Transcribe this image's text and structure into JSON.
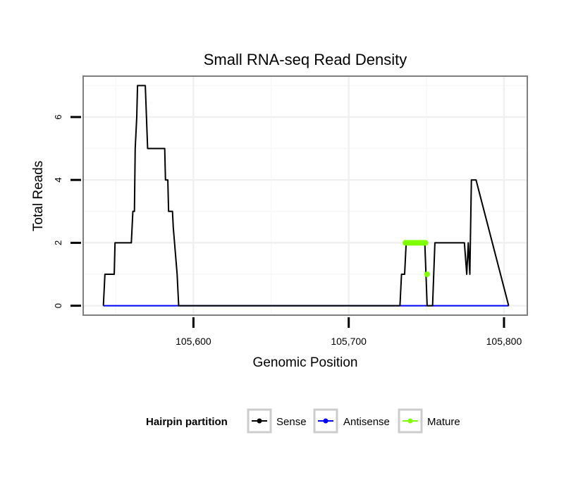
{
  "chart_data": {
    "type": "line",
    "title": "Small RNA-seq Read Density",
    "xlabel": "Genomic Position",
    "ylabel": "Total Reads",
    "xlim": [
      105529,
      105815
    ],
    "ylim": [
      -0.3,
      7.3
    ],
    "x_ticks": [
      105600,
      105700,
      105800
    ],
    "x_tick_labels": [
      "105,600",
      "105,700",
      "105,800"
    ],
    "x_minor_grid": [
      105550,
      105650,
      105750
    ],
    "y_ticks": [
      0,
      2,
      4,
      6
    ],
    "y_tick_labels": [
      "0",
      "2",
      "4",
      "6"
    ],
    "y_minor_grid": [
      1,
      3,
      5,
      7
    ],
    "grid": true,
    "legend": {
      "title": "Hairpin partition",
      "position": "bottom",
      "entries": [
        "Sense",
        "Antisense",
        "Mature"
      ]
    },
    "series": [
      {
        "name": "Sense",
        "color": "#000000",
        "x": [
          105542,
          105543,
          105544,
          105549,
          105549.5,
          105553,
          105553.5,
          105560,
          105561,
          105562,
          105562.5,
          105563.5,
          105564,
          105569,
          105570.5,
          105581.5,
          105582,
          105583.5,
          105584,
          105586.5,
          105587,
          105589.5,
          105590.5,
          105591.5,
          105733,
          105734,
          105736,
          105737,
          105749,
          105750.5,
          105754,
          105755.5,
          105756.5,
          105774.5,
          105776,
          105777,
          105778,
          105779,
          105782,
          105803
        ],
        "y": [
          0,
          1,
          1,
          1,
          2,
          2,
          2,
          2,
          3,
          3,
          5,
          6,
          7,
          7,
          5,
          5,
          4,
          4,
          3,
          3,
          2.5,
          1,
          0,
          0,
          0,
          1,
          1,
          2,
          2,
          0,
          0,
          2,
          2,
          2,
          1,
          2,
          1,
          4,
          4,
          0
        ]
      },
      {
        "name": "Antisense",
        "color": "#0000ff",
        "x": [
          105542,
          105803
        ],
        "y": [
          0,
          0
        ]
      },
      {
        "name": "Mature",
        "color": "#7fff00",
        "x": [
          105736.5,
          105737.5,
          105738.5,
          105739.5,
          105740.5,
          105741.5,
          105742.5,
          105743.5,
          105744.5,
          105745.5,
          105746.5,
          105747.5,
          105748.5,
          105749.5,
          105750.5
        ],
        "y": [
          2,
          2,
          2,
          2,
          2,
          2,
          2,
          2,
          2,
          2,
          2,
          2,
          2,
          2,
          1
        ]
      }
    ]
  }
}
